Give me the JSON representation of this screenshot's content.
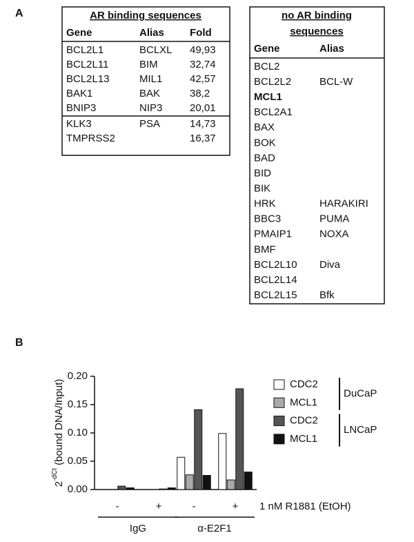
{
  "panel_a": {
    "label": "A",
    "table_1": {
      "title": "AR binding sequences",
      "headers": [
        "Gene",
        "Alias",
        "Fold"
      ],
      "rows": [
        [
          "BCL2L1",
          "BCLXL",
          "49,93"
        ],
        [
          "BCL2L11",
          "BIM",
          "32,74"
        ],
        [
          "BCL2L13",
          "MIL1",
          "42,57"
        ],
        [
          "BAK1",
          "BAK",
          "38,2"
        ],
        [
          "BNIP3",
          "NIP3",
          "20,01"
        ],
        [
          "KLK3",
          "PSA",
          "14,73"
        ],
        [
          "TMPRSS2",
          null,
          "16,37"
        ]
      ],
      "divider_before_row": 5
    },
    "table_2": {
      "title": [
        "no AR binding",
        "sequences"
      ],
      "headers": [
        "Gene",
        "Alias"
      ],
      "rows": [
        [
          "BCL2",
          null
        ],
        [
          "BCL2L2",
          "BCL-W"
        ],
        [
          "MCL1",
          null
        ],
        [
          "BCL2A1",
          null
        ],
        [
          "BAX",
          null
        ],
        [
          "BOK",
          null
        ],
        [
          "BAD",
          null
        ],
        [
          "BID",
          null
        ],
        [
          "BIK",
          null
        ],
        [
          "HRK",
          "HARAKIRI"
        ],
        [
          "BBC3",
          "PUMA"
        ],
        [
          "PMAIP1",
          "NOXA"
        ],
        [
          "BMF",
          null
        ],
        [
          "BCL2L10",
          "Diva"
        ],
        [
          "BCL2L14",
          null
        ],
        [
          "BCL2L15",
          "Bfk"
        ]
      ],
      "bold_row": 2
    }
  },
  "panel_b_label": "B",
  "chart_data": {
    "type": "bar",
    "y_label": {
      "base": "2",
      "sup": "-dCt",
      "rest": " (bound DNA/Input)"
    },
    "categories": [
      "-",
      "+",
      "-",
      "+"
    ],
    "category_groups": [
      "IgG",
      "α-E2F1"
    ],
    "x_label": "1 nM R1881 (EtOH)",
    "legend_groups": [
      "DuCaP",
      "LNCaP"
    ],
    "series": [
      {
        "name": "CDC2",
        "color": "#ffffff",
        "values": [
          0,
          0,
          0.057,
          0.099
        ]
      },
      {
        "name": "MCL1",
        "color": "#aaaaaa",
        "values": [
          0,
          0,
          0.026,
          0.017
        ]
      },
      {
        "name": "CDC2",
        "color": "#555555",
        "values": [
          0.006,
          0.001,
          0.141,
          0.178
        ]
      },
      {
        "name": "MCL1",
        "color": "#111111",
        "values": [
          0.003,
          0.003,
          0.025,
          0.031
        ]
      }
    ],
    "ylim": [
      0,
      0.2
    ],
    "yticks": [
      {
        "value": 0,
        "label": "0.00"
      },
      0.05,
      {
        "value": 0.1,
        "label": "0.10"
      },
      0.15,
      {
        "value": 0.2,
        "label": "0.20"
      }
    ]
  }
}
